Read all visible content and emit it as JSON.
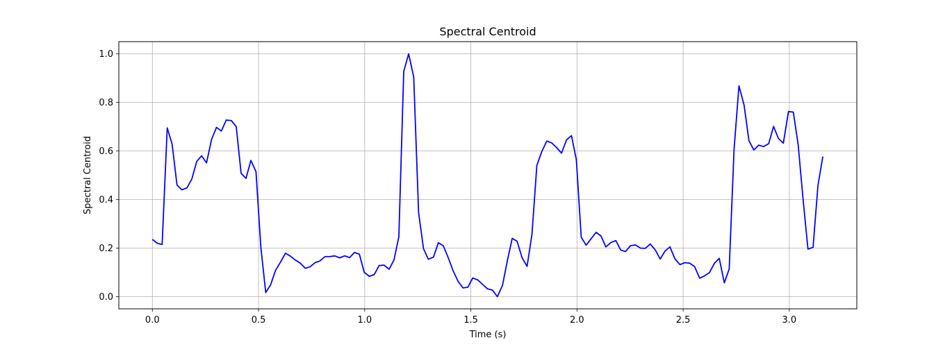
{
  "chart_data": {
    "type": "line",
    "title": "Spectral Centroid",
    "xlabel": "Time (s)",
    "ylabel": "Spectral Centroid",
    "xlim": [
      -0.158,
      3.318
    ],
    "ylim": [
      -0.05,
      1.05
    ],
    "xticks": [
      0.0,
      0.5,
      1.0,
      1.5,
      2.0,
      2.5,
      3.0
    ],
    "xtick_labels": [
      "0.0",
      "0.5",
      "1.0",
      "1.5",
      "2.0",
      "2.5",
      "3.0"
    ],
    "yticks": [
      0.0,
      0.2,
      0.4,
      0.6,
      0.8,
      1.0
    ],
    "ytick_labels": [
      "0.0",
      "0.2",
      "0.4",
      "0.6",
      "0.8",
      "1.0"
    ],
    "grid": true,
    "series": [
      {
        "color": "#0000ff",
        "x": [
          0.0,
          0.023,
          0.046,
          0.07,
          0.093,
          0.116,
          0.139,
          0.163,
          0.186,
          0.209,
          0.232,
          0.255,
          0.279,
          0.302,
          0.325,
          0.348,
          0.372,
          0.395,
          0.418,
          0.441,
          0.464,
          0.488,
          0.511,
          0.534,
          0.557,
          0.58,
          0.604,
          0.627,
          0.65,
          0.673,
          0.697,
          0.72,
          0.743,
          0.766,
          0.789,
          0.813,
          0.836,
          0.859,
          0.882,
          0.906,
          0.929,
          0.952,
          0.975,
          0.998,
          1.022,
          1.045,
          1.068,
          1.091,
          1.115,
          1.138,
          1.161,
          1.184,
          1.207,
          1.231,
          1.254,
          1.277,
          1.3,
          1.324,
          1.347,
          1.37,
          1.393,
          1.416,
          1.44,
          1.463,
          1.486,
          1.509,
          1.533,
          1.556,
          1.579,
          1.602,
          1.625,
          1.649,
          1.672,
          1.695,
          1.718,
          1.742,
          1.765,
          1.788,
          1.811,
          1.834,
          1.858,
          1.881,
          1.904,
          1.927,
          1.951,
          1.974,
          1.997,
          2.02,
          2.043,
          2.067,
          2.09,
          2.113,
          2.136,
          2.16,
          2.183,
          2.206,
          2.229,
          2.252,
          2.276,
          2.299,
          2.322,
          2.345,
          2.369,
          2.392,
          2.415,
          2.438,
          2.461,
          2.485,
          2.508,
          2.531,
          2.554,
          2.578,
          2.601,
          2.624,
          2.647,
          2.67,
          2.694,
          2.717,
          2.74,
          2.763,
          2.787,
          2.81,
          2.833,
          2.856,
          2.879,
          2.903,
          2.926,
          2.949,
          2.972,
          2.996,
          3.019,
          3.042,
          3.065,
          3.088,
          3.112,
          3.135,
          3.158
        ],
        "y": [
          0.236,
          0.22,
          0.215,
          0.695,
          0.628,
          0.46,
          0.44,
          0.448,
          0.485,
          0.557,
          0.58,
          0.551,
          0.648,
          0.697,
          0.682,
          0.727,
          0.725,
          0.7,
          0.508,
          0.487,
          0.561,
          0.515,
          0.203,
          0.017,
          0.049,
          0.108,
          0.143,
          0.179,
          0.167,
          0.151,
          0.138,
          0.117,
          0.123,
          0.14,
          0.147,
          0.165,
          0.165,
          0.168,
          0.16,
          0.168,
          0.161,
          0.182,
          0.175,
          0.1,
          0.084,
          0.091,
          0.128,
          0.13,
          0.113,
          0.151,
          0.247,
          0.927,
          1.0,
          0.904,
          0.346,
          0.198,
          0.154,
          0.163,
          0.222,
          0.21,
          0.162,
          0.108,
          0.063,
          0.036,
          0.039,
          0.077,
          0.069,
          0.05,
          0.032,
          0.027,
          0.0,
          0.046,
          0.148,
          0.24,
          0.228,
          0.159,
          0.125,
          0.257,
          0.541,
          0.597,
          0.641,
          0.633,
          0.614,
          0.591,
          0.646,
          0.663,
          0.564,
          0.245,
          0.212,
          0.239,
          0.265,
          0.25,
          0.205,
          0.223,
          0.231,
          0.192,
          0.186,
          0.21,
          0.213,
          0.2,
          0.199,
          0.217,
          0.192,
          0.155,
          0.188,
          0.205,
          0.156,
          0.132,
          0.14,
          0.138,
          0.124,
          0.076,
          0.086,
          0.099,
          0.137,
          0.158,
          0.057,
          0.114,
          0.608,
          0.868,
          0.789,
          0.642,
          0.604,
          0.624,
          0.618,
          0.63,
          0.701,
          0.651,
          0.632,
          0.762,
          0.76,
          0.624,
          0.4,
          0.196,
          0.203,
          0.458,
          0.577
        ]
      }
    ]
  }
}
